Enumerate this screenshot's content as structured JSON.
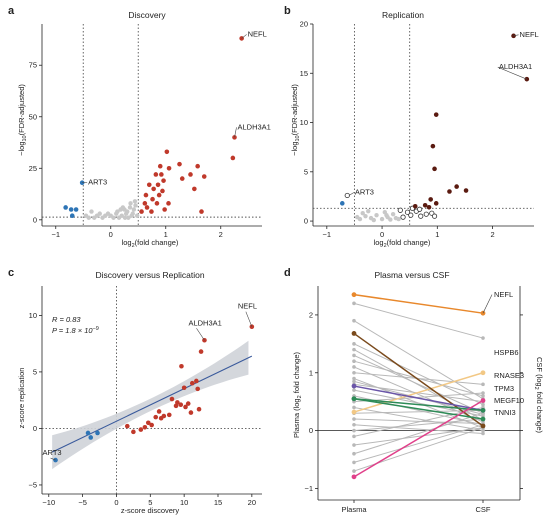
{
  "panels": {
    "a": {
      "letter": "a",
      "chart_data": {
        "type": "scatter",
        "title": "Discovery",
        "xlabel_main": "log",
        "xlabel_sub": "2",
        "xlabel_tail": "(fold change)",
        "ylabel_main": "−log",
        "ylabel_sub": "10",
        "ylabel_tail": "(FDR-adjusted)",
        "xlim": [
          -1.25,
          2.75
        ],
        "ylim": [
          -3,
          95
        ],
        "xticks": [
          -1,
          0,
          1,
          2
        ],
        "yticks": [
          0,
          25,
          50,
          75
        ],
        "xtick_labels": [
          "−1",
          "0",
          "1",
          "2"
        ],
        "vlines": [
          -0.5,
          0.5
        ],
        "hline": 1.3,
        "labels": [
          {
            "text": "NEFL",
            "x": 2.38,
            "y": 88,
            "dx": 6,
            "dy": -2
          },
          {
            "text": "ALDH3A1",
            "x": 2.25,
            "y": 40,
            "dx": 3,
            "dy": -8
          },
          {
            "text": "ART3",
            "x": -0.52,
            "y": 18,
            "dx": 6,
            "dy": 2
          }
        ],
        "points_up": [
          [
            2.38,
            88
          ],
          [
            2.25,
            40
          ],
          [
            2.22,
            30
          ],
          [
            1.65,
            4
          ],
          [
            1.02,
            33
          ],
          [
            1.06,
            25
          ],
          [
            0.92,
            22
          ],
          [
            0.96,
            19
          ],
          [
            0.86,
            17
          ],
          [
            0.78,
            15
          ],
          [
            0.94,
            14
          ],
          [
            0.88,
            12
          ],
          [
            0.76,
            10
          ],
          [
            0.84,
            8
          ],
          [
            0.62,
            8
          ],
          [
            0.66,
            6
          ],
          [
            0.74,
            4
          ],
          [
            0.56,
            4
          ],
          [
            0.98,
            5
          ],
          [
            1.05,
            8
          ],
          [
            1.25,
            27
          ],
          [
            1.3,
            20
          ],
          [
            1.45,
            22
          ],
          [
            1.52,
            15
          ],
          [
            1.58,
            26
          ],
          [
            1.7,
            21
          ],
          [
            0.64,
            12
          ],
          [
            0.82,
            22
          ],
          [
            0.7,
            17
          ],
          [
            0.9,
            26
          ]
        ],
        "points_down": [
          [
            -0.52,
            18
          ],
          [
            -0.82,
            6
          ],
          [
            -0.72,
            5
          ],
          [
            -0.63,
            5
          ],
          [
            -0.7,
            2
          ]
        ],
        "points_ns": [
          [
            -0.45,
            2
          ],
          [
            -0.35,
            4
          ],
          [
            -0.3,
            1
          ],
          [
            -0.2,
            3
          ],
          [
            -0.1,
            2
          ],
          [
            0.05,
            1
          ],
          [
            0.1,
            3
          ],
          [
            0.2,
            2
          ],
          [
            0.25,
            5
          ],
          [
            0.3,
            4
          ],
          [
            0.35,
            6
          ],
          [
            0.4,
            3
          ],
          [
            0.45,
            7
          ],
          [
            0.42,
            5
          ],
          [
            0.15,
            1
          ],
          [
            0.0,
            2
          ],
          [
            -0.15,
            1
          ],
          [
            -0.25,
            2
          ],
          [
            0.32,
            1
          ],
          [
            0.38,
            2
          ],
          [
            0.22,
            6
          ],
          [
            0.28,
            3
          ],
          [
            0.48,
            2
          ],
          [
            -0.4,
            1
          ],
          [
            0.12,
            4
          ],
          [
            0.18,
            5
          ],
          [
            0.36,
            8
          ],
          [
            0.44,
            9
          ],
          [
            0.26,
            1
          ],
          [
            -0.05,
            3
          ]
        ]
      }
    },
    "b": {
      "letter": "b",
      "chart_data": {
        "type": "scatter",
        "title": "Replication",
        "xlabel_main": "log",
        "xlabel_sub": "2",
        "xlabel_tail": "(fold change)",
        "ylabel_main": "−log",
        "ylabel_sub": "10",
        "ylabel_tail": "(FDR-adjusted)",
        "xlim": [
          -1.25,
          2.75
        ],
        "ylim": [
          -0.5,
          20
        ],
        "xticks": [
          -1,
          0,
          1,
          2
        ],
        "yticks": [
          0,
          5,
          10,
          15,
          20
        ],
        "xtick_labels": [
          "−1",
          "0",
          "1",
          "2"
        ],
        "vlines": [
          -0.5,
          0.5
        ],
        "hline": 1.3,
        "labels": [
          {
            "text": "NEFL",
            "x": 2.38,
            "y": 18.8,
            "dx": 6,
            "dy": 1
          },
          {
            "text": "ALDH3A1",
            "x": 2.62,
            "y": 14.4,
            "dx": -28,
            "dy": -10
          },
          {
            "text": "ART3",
            "x": -0.6,
            "y": 2.6,
            "dx": 6,
            "dy": -1
          }
        ],
        "points_dark": [
          [
            2.38,
            18.8
          ],
          [
            2.62,
            14.4
          ],
          [
            0.98,
            10.8
          ],
          [
            0.92,
            7.6
          ],
          [
            1.35,
            3.5
          ],
          [
            1.52,
            3.1
          ],
          [
            1.22,
            3.0
          ],
          [
            0.95,
            5.3
          ],
          [
            0.78,
            1.6
          ],
          [
            0.85,
            1.4
          ],
          [
            0.6,
            1.5
          ],
          [
            0.98,
            1.8
          ],
          [
            0.88,
            2.2
          ]
        ],
        "points_open": [
          [
            0.62,
            1.0
          ],
          [
            0.52,
            0.6
          ],
          [
            0.46,
            0.9
          ],
          [
            0.38,
            0.4
          ],
          [
            0.7,
            0.5
          ],
          [
            0.8,
            0.7
          ],
          [
            0.9,
            0.8
          ],
          [
            0.95,
            0.5
          ],
          [
            0.33,
            1.1
          ],
          [
            0.55,
            1.3
          ],
          [
            0.68,
            1.2
          ],
          [
            -0.63,
            2.6
          ]
        ],
        "points_blue": [
          [
            -0.72,
            1.8
          ]
        ],
        "points_ns": [
          [
            -0.4,
            0.2
          ],
          [
            -0.3,
            0.5
          ],
          [
            -0.2,
            0.3
          ],
          [
            -0.1,
            0.6
          ],
          [
            0.0,
            0.2
          ],
          [
            0.1,
            0.4
          ],
          [
            0.2,
            0.7
          ],
          [
            0.25,
            0.3
          ],
          [
            -0.35,
            0.8
          ],
          [
            -0.45,
            0.4
          ],
          [
            0.05,
            0.9
          ],
          [
            -0.15,
            0.1
          ],
          [
            0.15,
            0.15
          ],
          [
            0.3,
            0.2
          ],
          [
            -0.25,
            1.0
          ],
          [
            0.08,
            0.6
          ]
        ]
      }
    },
    "c": {
      "letter": "c",
      "chart_data": {
        "type": "scatter",
        "title": "Discovery versus Replication",
        "xlabel": "z-score discovery",
        "ylabel": "z-score replication",
        "xlim": [
          -11,
          21.5
        ],
        "ylim": [
          -5.8,
          12.6
        ],
        "xticks": [
          -10,
          -5,
          0,
          5,
          10,
          15,
          20
        ],
        "yticks": [
          -5,
          0,
          5,
          10
        ],
        "xtick_labels": [
          "−10",
          "−5",
          "0",
          "5",
          "10",
          "15",
          "20"
        ],
        "ytick_labels": [
          "−5",
          "0",
          "5",
          "10"
        ],
        "stats_r": "R = 0.83",
        "stats_p_main": "P = 1.8 × 10",
        "stats_p_exp": "−9",
        "fit_line": [
          [
            -9.5,
            -2.1
          ],
          [
            20,
            6.4
          ]
        ],
        "labels": [
          {
            "text": "NEFL",
            "x": 20,
            "y": 9,
            "dx": -14,
            "dy": -18
          },
          {
            "text": "ALDH3A1",
            "x": 13,
            "y": 7.8,
            "dx": -16,
            "dy": -15
          },
          {
            "text": "ART3",
            "x": -9,
            "y": -2.8,
            "dx": -13,
            "dy": -5
          }
        ],
        "points_up": [
          [
            20,
            9
          ],
          [
            13,
            7.8
          ],
          [
            12.5,
            6.8
          ],
          [
            9.6,
            5.5
          ],
          [
            10,
            3.6
          ],
          [
            11.2,
            4
          ],
          [
            11.8,
            4.2
          ],
          [
            12,
            3.5
          ],
          [
            10.6,
            2.2
          ],
          [
            9.5,
            2.1
          ],
          [
            8.8,
            2.0
          ],
          [
            7.8,
            1.2
          ],
          [
            6.3,
            1.5
          ],
          [
            4.7,
            0.5
          ],
          [
            5.2,
            0.3
          ],
          [
            3.6,
            -0.1
          ],
          [
            2.5,
            -0.3
          ],
          [
            1.6,
            0.2
          ],
          [
            5.8,
            1
          ],
          [
            8.2,
            2.6
          ],
          [
            10.2,
            1.9
          ],
          [
            11,
            1.4
          ],
          [
            12.2,
            1.7
          ],
          [
            9,
            2.3
          ],
          [
            7,
            1.1
          ],
          [
            6.6,
            0.9
          ],
          [
            4.2,
            0.1
          ]
        ],
        "points_down": [
          [
            -9,
            -2.8
          ],
          [
            -4.2,
            -0.4
          ],
          [
            -3.8,
            -0.8
          ],
          [
            -2.8,
            -0.4
          ]
        ]
      }
    },
    "d": {
      "letter": "d",
      "chart_data": {
        "type": "line",
        "title": "Plasma versus CSF",
        "categories": [
          "Plasma",
          "CSF"
        ],
        "ylabel_left": "Plasma (log",
        "ylabel_left_sub": "2",
        "ylabel_left_tail": " fold change)",
        "ylabel_right": "CSF (log",
        "ylabel_right_sub": "2",
        "ylabel_right_tail": " fold change)",
        "ylim": [
          -1.2,
          2.5
        ],
        "yticks": [
          -1,
          0,
          1,
          2
        ],
        "ytick_labels": [
          "−1",
          "0",
          "1",
          "2"
        ],
        "series": [
          {
            "name": "NEFL",
            "values": [
              2.35,
              2.03
            ],
            "color": "#e8882c"
          },
          {
            "name": "HSPB6",
            "values": [
              0.32,
              1.0
            ],
            "color": "#f2c885"
          },
          {
            "name": "",
            "values": [
              1.68,
              0.08
            ],
            "color": "#7a4a1c"
          },
          {
            "name": "",
            "values": [
              0.77,
              0.35
            ],
            "color": "#6a55a8"
          },
          {
            "name": "MEGF10",
            "values": [
              0.55,
              0.35
            ],
            "color": "#2e8b57"
          },
          {
            "name": "TNNI3",
            "values": [
              0.55,
              0.2
            ],
            "color": "#2e8b57"
          },
          {
            "name": "",
            "values": [
              -0.8,
              0.52
            ],
            "color": "#e0408a"
          }
        ],
        "grey_series": [
          [
            2.2,
            1.6
          ],
          [
            1.9,
            0.55
          ],
          [
            1.5,
            0.45
          ],
          [
            1.3,
            0.3
          ],
          [
            1.2,
            0.6
          ],
          [
            1.1,
            0.15
          ],
          [
            1.0,
            0.8
          ],
          [
            0.9,
            0.05
          ],
          [
            0.8,
            0.5
          ],
          [
            0.7,
            0.25
          ],
          [
            0.6,
            0.1
          ],
          [
            0.5,
            0.65
          ],
          [
            0.4,
            0.0
          ],
          [
            0.3,
            0.35
          ],
          [
            0.2,
            0.12
          ],
          [
            0.1,
            -0.05
          ],
          [
            0.0,
            0.2
          ],
          [
            -0.1,
            0.4
          ],
          [
            -0.25,
            0.05
          ],
          [
            -0.4,
            0.3
          ],
          [
            -0.55,
            0.1
          ],
          [
            -0.7,
            0.05
          ],
          [
            0.85,
            0.28
          ],
          [
            1.4,
            0.18
          ]
        ],
        "right_labels": [
          {
            "text": "NEFL",
            "y": 2.35
          },
          {
            "text": "HSPB6",
            "y": 1.35
          },
          {
            "text": "RNASE3",
            "y": 0.95
          },
          {
            "text": "TPM3",
            "y": 0.73
          },
          {
            "text": "MEGF10",
            "y": 0.52
          },
          {
            "text": "TNNI3",
            "y": 0.31
          }
        ]
      }
    }
  },
  "colors": {
    "up": "#c0392b",
    "down": "#2e75b6",
    "ns": "#c8c8c8",
    "dark": "#5a1a10",
    "fit": "#3a5a9c",
    "band": "#cfd3d8",
    "grey_line": "#b8b8b8"
  }
}
